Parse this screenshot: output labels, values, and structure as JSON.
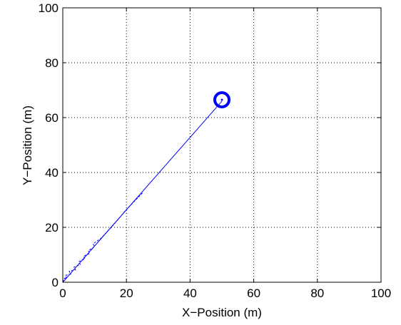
{
  "chart_data": {
    "type": "line",
    "title": "",
    "xlabel": "X−Position (m)",
    "ylabel": "Y−Position (m)",
    "xlim": [
      0,
      100
    ],
    "ylim": [
      0,
      100
    ],
    "xticks": [
      0,
      20,
      40,
      60,
      80,
      100
    ],
    "yticks": [
      0,
      20,
      40,
      60,
      80,
      100
    ],
    "xtick_labels": [
      "0",
      "20",
      "40",
      "60",
      "80",
      "100"
    ],
    "ytick_labels": [
      "0",
      "20",
      "40",
      "60",
      "80",
      "100"
    ],
    "grid": true,
    "grid_style": "dotted",
    "series": [
      {
        "style": "solid",
        "color": "#0000ff",
        "x": [
          0,
          50
        ],
        "y": [
          0,
          66
        ]
      },
      {
        "style": "dashed",
        "color": "#0000ff",
        "x": [
          0,
          0.5,
          1.2,
          0.8,
          2.5,
          2,
          4,
          3.5,
          5.5,
          5,
          7,
          6.5,
          8.5,
          8,
          10,
          9.5,
          12,
          16,
          20,
          25
        ],
        "y": [
          0,
          1.5,
          1.2,
          2.5,
          3,
          4,
          4.5,
          5.5,
          6.5,
          7.5,
          8.5,
          9.5,
          10.5,
          11.5,
          13,
          14,
          16,
          21,
          26.5,
          32.5
        ]
      }
    ],
    "marker": {
      "type": "circle",
      "color": "#0000ff",
      "x": 50,
      "y": 66.5
    }
  }
}
